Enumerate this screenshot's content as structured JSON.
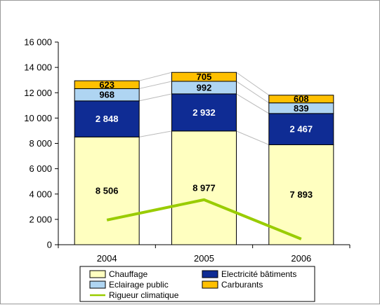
{
  "chart_data": {
    "type": "bar",
    "stacked": true,
    "categories": [
      "2004",
      "2005",
      "2006"
    ],
    "series": [
      {
        "name": "Chauffage",
        "values": [
          8506,
          8977,
          7893
        ],
        "labels": [
          "8 506",
          "8 977",
          "7 893"
        ],
        "color": "#FFFFC0",
        "label_color": "#000000"
      },
      {
        "name": "Electricité bâtiments",
        "values": [
          2848,
          2932,
          2467
        ],
        "labels": [
          "2 848",
          "2 932",
          "2 467"
        ],
        "color": "#0F2C94",
        "label_color": "#FFFFFF"
      },
      {
        "name": "Eclairage public",
        "values": [
          968,
          992,
          839
        ],
        "labels": [
          "968",
          "992",
          "839"
        ],
        "color": "#AFD5F2",
        "label_color": "#000000"
      },
      {
        "name": "Carburants",
        "values": [
          623,
          705,
          608
        ],
        "labels": [
          "623",
          "705",
          "608"
        ],
        "color": "#FFC000",
        "label_color": "#000000"
      }
    ],
    "line_series": {
      "name": "Rigueur climatique",
      "values": [
        1950,
        3550,
        450
      ],
      "color": "#99CC00"
    },
    "ylim": [
      0,
      16000
    ],
    "yticks": [
      0,
      2000,
      4000,
      6000,
      8000,
      10000,
      12000,
      14000,
      16000
    ],
    "ytick_labels": [
      "0",
      "2 000",
      "4 000",
      "6 000",
      "8 000",
      "10 000",
      "12 000",
      "14 000",
      "16 000"
    ],
    "legend_position": "bottom",
    "grid": false,
    "title": "",
    "xlabel": "",
    "ylabel": ""
  },
  "legend": {
    "items": [
      {
        "label": "Chauffage",
        "color": "#FFFFC0",
        "kind": "box"
      },
      {
        "label": "Electricité bâtiments",
        "color": "#0F2C94",
        "kind": "box"
      },
      {
        "label": "Eclairage public",
        "color": "#AFD5F2",
        "kind": "box"
      },
      {
        "label": "Carburants",
        "color": "#FFC000",
        "kind": "box"
      },
      {
        "label": "Rigueur climatique",
        "color": "#99CC00",
        "kind": "line"
      }
    ]
  }
}
